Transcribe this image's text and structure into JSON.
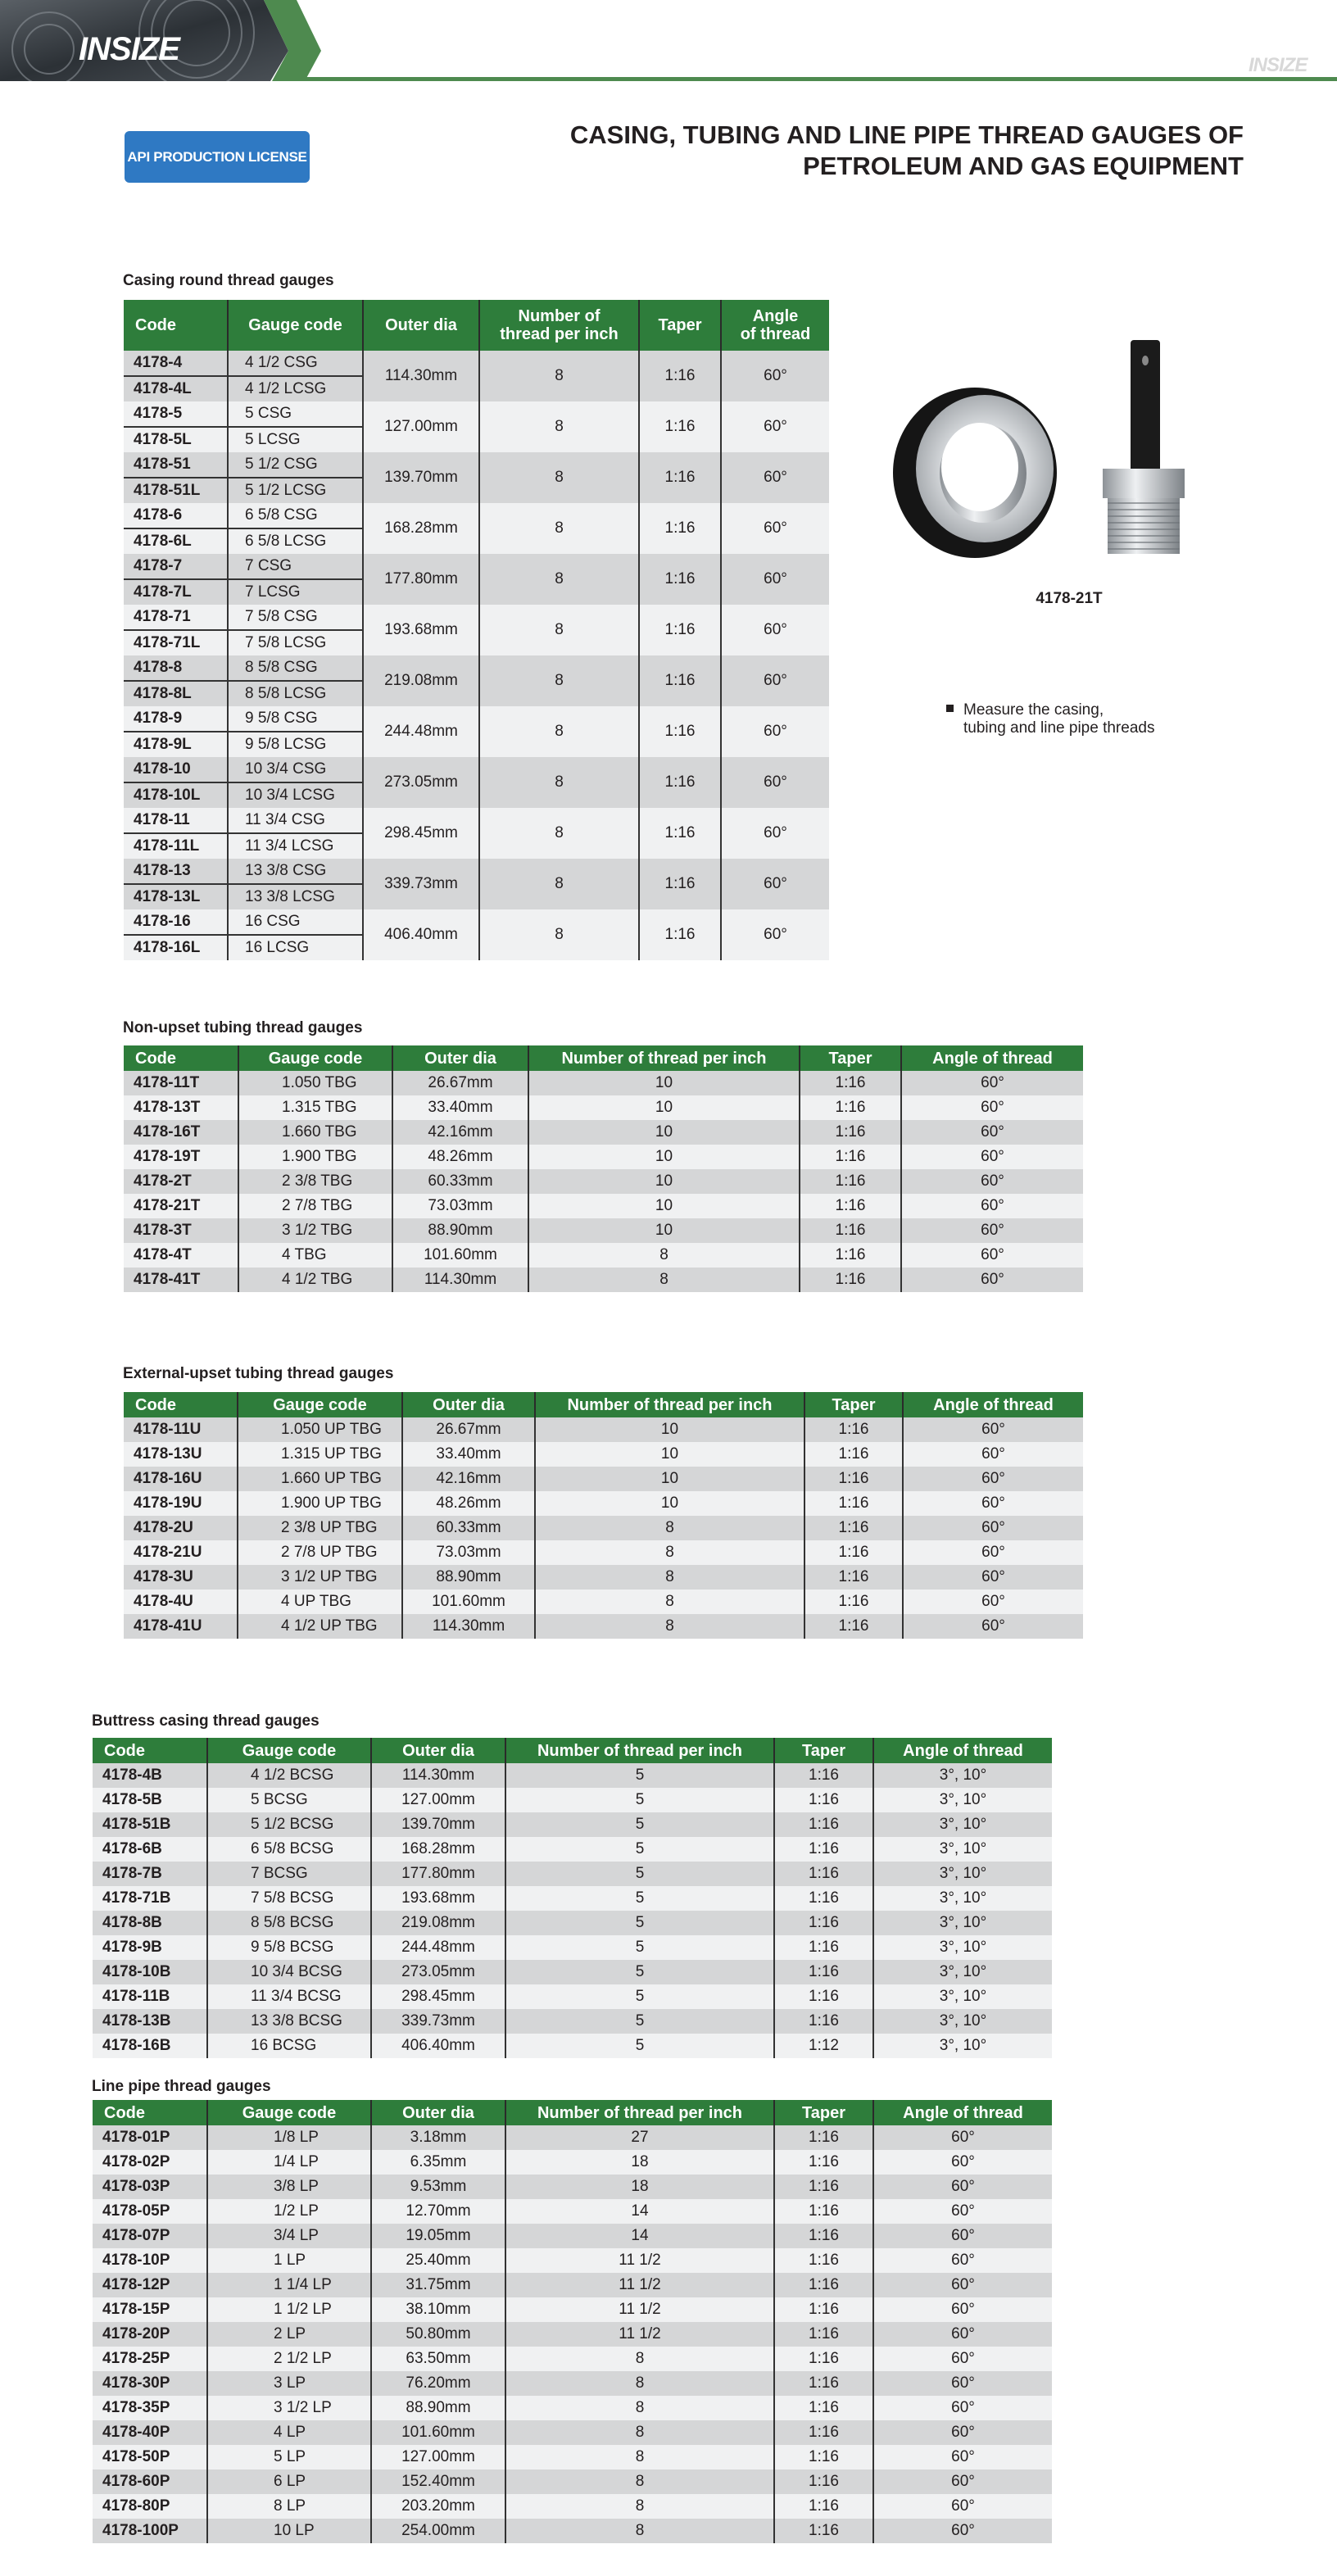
{
  "brand": {
    "logo": "INSIZE",
    "small_logo": "INSIZE",
    "accent": "#2e7d3b",
    "badge_color": "#2f79c3"
  },
  "header": {
    "badge": "API PRODUCTION LICENSE",
    "title_line1": "CASING, TUBING AND LINE PIPE THREAD GAUGES OF",
    "title_line2": "PETROLEUM AND GAS EQUIPMENT"
  },
  "product": {
    "image": "ring-gauge-and-plug-gauge",
    "caption": "4178-21T",
    "feature_line1": "Measure the casing,",
    "feature_line2": "tubing and line pipe threads"
  },
  "casing": {
    "title": "Casing round thread gauges",
    "columns": [
      "Code",
      "Gauge code",
      "Outer dia",
      "Number of thread per inch",
      "Taper",
      "Angle of thread"
    ],
    "groups": [
      {
        "codes": [
          "4178-4",
          "4178-4L"
        ],
        "gauges": [
          "4 1/2 CSG",
          "4 1/2 LCSG"
        ],
        "outer": "114.30mm",
        "tpi": "8",
        "taper": "1:16",
        "angle": "60°"
      },
      {
        "codes": [
          "4178-5",
          "4178-5L"
        ],
        "gauges": [
          "5 CSG",
          "5 LCSG"
        ],
        "outer": "127.00mm",
        "tpi": "8",
        "taper": "1:16",
        "angle": "60°"
      },
      {
        "codes": [
          "4178-51",
          "4178-51L"
        ],
        "gauges": [
          "5 1/2 CSG",
          "5 1/2 LCSG"
        ],
        "outer": "139.70mm",
        "tpi": "8",
        "taper": "1:16",
        "angle": "60°"
      },
      {
        "codes": [
          "4178-6",
          "4178-6L"
        ],
        "gauges": [
          "6 5/8 CSG",
          "6 5/8 LCSG"
        ],
        "outer": "168.28mm",
        "tpi": "8",
        "taper": "1:16",
        "angle": "60°"
      },
      {
        "codes": [
          "4178-7",
          "4178-7L"
        ],
        "gauges": [
          "7 CSG",
          "7 LCSG"
        ],
        "outer": "177.80mm",
        "tpi": "8",
        "taper": "1:16",
        "angle": "60°"
      },
      {
        "codes": [
          "4178-71",
          "4178-71L"
        ],
        "gauges": [
          "7 5/8 CSG",
          "7 5/8 LCSG"
        ],
        "outer": "193.68mm",
        "tpi": "8",
        "taper": "1:16",
        "angle": "60°"
      },
      {
        "codes": [
          "4178-8",
          "4178-8L"
        ],
        "gauges": [
          "8 5/8 CSG",
          "8 5/8 LCSG"
        ],
        "outer": "219.08mm",
        "tpi": "8",
        "taper": "1:16",
        "angle": "60°"
      },
      {
        "codes": [
          "4178-9",
          "4178-9L"
        ],
        "gauges": [
          "9 5/8 CSG",
          "9 5/8 LCSG"
        ],
        "outer": "244.48mm",
        "tpi": "8",
        "taper": "1:16",
        "angle": "60°"
      },
      {
        "codes": [
          "4178-10",
          "4178-10L"
        ],
        "gauges": [
          "10 3/4 CSG",
          "10 3/4 LCSG"
        ],
        "outer": "273.05mm",
        "tpi": "8",
        "taper": "1:16",
        "angle": "60°"
      },
      {
        "codes": [
          "4178-11",
          "4178-11L"
        ],
        "gauges": [
          "11 3/4 CSG",
          "11 3/4 LCSG"
        ],
        "outer": "298.45mm",
        "tpi": "8",
        "taper": "1:16",
        "angle": "60°"
      },
      {
        "codes": [
          "4178-13",
          "4178-13L"
        ],
        "gauges": [
          "13 3/8 CSG",
          "13 3/8 LCSG"
        ],
        "outer": "339.73mm",
        "tpi": "8",
        "taper": "1:16",
        "angle": "60°"
      },
      {
        "codes": [
          "4178-16",
          "4178-16L"
        ],
        "gauges": [
          "16 CSG",
          "16 LCSG"
        ],
        "outer": "406.40mm",
        "tpi": "8",
        "taper": "1:16",
        "angle": "60°"
      }
    ]
  },
  "tables": [
    {
      "id": "non-upset",
      "title": "Non-upset tubing thread gauges",
      "columns": [
        "Code",
        "Gauge code",
        "Outer dia",
        "Number of thread per inch",
        "Taper",
        "Angle of thread"
      ],
      "rows": [
        [
          "4178-11T",
          "1.050 TBG",
          "26.67mm",
          "10",
          "1:16",
          "60°"
        ],
        [
          "4178-13T",
          "1.315 TBG",
          "33.40mm",
          "10",
          "1:16",
          "60°"
        ],
        [
          "4178-16T",
          "1.660 TBG",
          "42.16mm",
          "10",
          "1:16",
          "60°"
        ],
        [
          "4178-19T",
          "1.900 TBG",
          "48.26mm",
          "10",
          "1:16",
          "60°"
        ],
        [
          "4178-2T",
          "2 3/8 TBG",
          "60.33mm",
          "10",
          "1:16",
          "60°"
        ],
        [
          "4178-21T",
          "2 7/8 TBG",
          "73.03mm",
          "10",
          "1:16",
          "60°"
        ],
        [
          "4178-3T",
          "3 1/2 TBG",
          "88.90mm",
          "10",
          "1:16",
          "60°"
        ],
        [
          "4178-4T",
          "4 TBG",
          "101.60mm",
          "8",
          "1:16",
          "60°"
        ],
        [
          "4178-41T",
          "4 1/2 TBG",
          "114.30mm",
          "8",
          "1:16",
          "60°"
        ]
      ]
    },
    {
      "id": "external-upset",
      "title": "External-upset tubing thread gauges",
      "columns": [
        "Code",
        "Gauge code",
        "Outer dia",
        "Number of thread per inch",
        "Taper",
        "Angle of thread"
      ],
      "rows": [
        [
          "4178-11U",
          "1.050 UP TBG",
          "26.67mm",
          "10",
          "1:16",
          "60°"
        ],
        [
          "4178-13U",
          "1.315 UP TBG",
          "33.40mm",
          "10",
          "1:16",
          "60°"
        ],
        [
          "4178-16U",
          "1.660 UP TBG",
          "42.16mm",
          "10",
          "1:16",
          "60°"
        ],
        [
          "4178-19U",
          "1.900 UP TBG",
          "48.26mm",
          "10",
          "1:16",
          "60°"
        ],
        [
          "4178-2U",
          "2 3/8 UP TBG",
          "60.33mm",
          "8",
          "1:16",
          "60°"
        ],
        [
          "4178-21U",
          "2 7/8 UP TBG",
          "73.03mm",
          "8",
          "1:16",
          "60°"
        ],
        [
          "4178-3U",
          "3 1/2 UP TBG",
          "88.90mm",
          "8",
          "1:16",
          "60°"
        ],
        [
          "4178-4U",
          "4 UP TBG",
          "101.60mm",
          "8",
          "1:16",
          "60°"
        ],
        [
          "4178-41U",
          "4 1/2 UP TBG",
          "114.30mm",
          "8",
          "1:16",
          "60°"
        ]
      ]
    },
    {
      "id": "buttress",
      "title": "Buttress casing thread gauges",
      "columns": [
        "Code",
        "Gauge code",
        "Outer dia",
        "Number of thread per inch",
        "Taper",
        "Angle of thread"
      ],
      "rows": [
        [
          "4178-4B",
          "4 1/2 BCSG",
          "114.30mm",
          "5",
          "1:16",
          "3°, 10°"
        ],
        [
          "4178-5B",
          "5 BCSG",
          "127.00mm",
          "5",
          "1:16",
          "3°, 10°"
        ],
        [
          "4178-51B",
          "5 1/2 BCSG",
          "139.70mm",
          "5",
          "1:16",
          "3°, 10°"
        ],
        [
          "4178-6B",
          "6 5/8 BCSG",
          "168.28mm",
          "5",
          "1:16",
          "3°, 10°"
        ],
        [
          "4178-7B",
          "7 BCSG",
          "177.80mm",
          "5",
          "1:16",
          "3°, 10°"
        ],
        [
          "4178-71B",
          "7 5/8 BCSG",
          "193.68mm",
          "5",
          "1:16",
          "3°, 10°"
        ],
        [
          "4178-8B",
          "8 5/8 BCSG",
          "219.08mm",
          "5",
          "1:16",
          "3°, 10°"
        ],
        [
          "4178-9B",
          "9 5/8 BCSG",
          "244.48mm",
          "5",
          "1:16",
          "3°, 10°"
        ],
        [
          "4178-10B",
          "10 3/4 BCSG",
          "273.05mm",
          "5",
          "1:16",
          "3°, 10°"
        ],
        [
          "4178-11B",
          "11 3/4 BCSG",
          "298.45mm",
          "5",
          "1:16",
          "3°, 10°"
        ],
        [
          "4178-13B",
          "13 3/8 BCSG",
          "339.73mm",
          "5",
          "1:16",
          "3°, 10°"
        ],
        [
          "4178-16B",
          "16 BCSG",
          "406.40mm",
          "5",
          "1:12",
          "3°, 10°"
        ]
      ]
    },
    {
      "id": "line-pipe",
      "title": "Line pipe thread gauges",
      "columns": [
        "Code",
        "Gauge code",
        "Outer dia",
        "Number of thread per inch",
        "Taper",
        "Angle of thread"
      ],
      "rows": [
        [
          "4178-01P",
          "1/8 LP",
          "3.18mm",
          "27",
          "1:16",
          "60°"
        ],
        [
          "4178-02P",
          "1/4 LP",
          "6.35mm",
          "18",
          "1:16",
          "60°"
        ],
        [
          "4178-03P",
          "3/8 LP",
          "9.53mm",
          "18",
          "1:16",
          "60°"
        ],
        [
          "4178-05P",
          "1/2 LP",
          "12.70mm",
          "14",
          "1:16",
          "60°"
        ],
        [
          "4178-07P",
          "3/4 LP",
          "19.05mm",
          "14",
          "1:16",
          "60°"
        ],
        [
          "4178-10P",
          "1 LP",
          "25.40mm",
          "11 1/2",
          "1:16",
          "60°"
        ],
        [
          "4178-12P",
          "1 1/4 LP",
          "31.75mm",
          "11 1/2",
          "1:16",
          "60°"
        ],
        [
          "4178-15P",
          "1 1/2 LP",
          "38.10mm",
          "11 1/2",
          "1:16",
          "60°"
        ],
        [
          "4178-20P",
          "2 LP",
          "50.80mm",
          "11 1/2",
          "1:16",
          "60°"
        ],
        [
          "4178-25P",
          "2 1/2 LP",
          "63.50mm",
          "8",
          "1:16",
          "60°"
        ],
        [
          "4178-30P",
          "3 LP",
          "76.20mm",
          "8",
          "1:16",
          "60°"
        ],
        [
          "4178-35P",
          "3 1/2 LP",
          "88.90mm",
          "8",
          "1:16",
          "60°"
        ],
        [
          "4178-40P",
          "4 LP",
          "101.60mm",
          "8",
          "1:16",
          "60°"
        ],
        [
          "4178-50P",
          "5 LP",
          "127.00mm",
          "8",
          "1:16",
          "60°"
        ],
        [
          "4178-60P",
          "6 LP",
          "152.40mm",
          "8",
          "1:16",
          "60°"
        ],
        [
          "4178-80P",
          "8 LP",
          "203.20mm",
          "8",
          "1:16",
          "60°"
        ],
        [
          "4178-100P",
          "10 LP",
          "254.00mm",
          "8",
          "1:16",
          "60°"
        ]
      ]
    }
  ]
}
